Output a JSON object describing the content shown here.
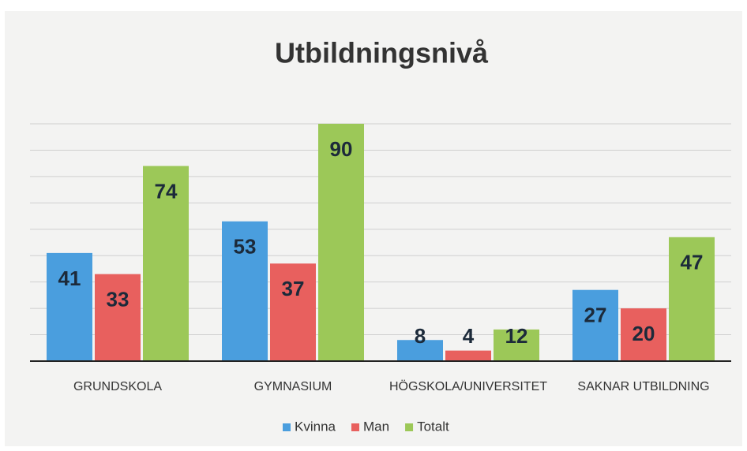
{
  "chart_data": {
    "type": "bar",
    "title": "Utbildningsnivå",
    "categories": [
      "GRUNDSKOLA",
      "GYMNASIUM",
      "HÖGSKOLA/UNIVERSITET",
      "SAKNAR UTBILDNING"
    ],
    "series": [
      {
        "name": "Kvinna",
        "color": "#4a9ede",
        "values": [
          41,
          53,
          8,
          27
        ]
      },
      {
        "name": "Man",
        "color": "#e8605e",
        "values": [
          33,
          37,
          4,
          20
        ]
      },
      {
        "name": "Totalt",
        "color": "#9cc858",
        "values": [
          74,
          90,
          12,
          47
        ]
      }
    ],
    "ylim": [
      0,
      90
    ],
    "yticks": [
      0,
      10,
      20,
      30,
      40,
      50,
      60,
      70,
      80,
      90
    ],
    "grid": true,
    "legend": "bottom"
  }
}
